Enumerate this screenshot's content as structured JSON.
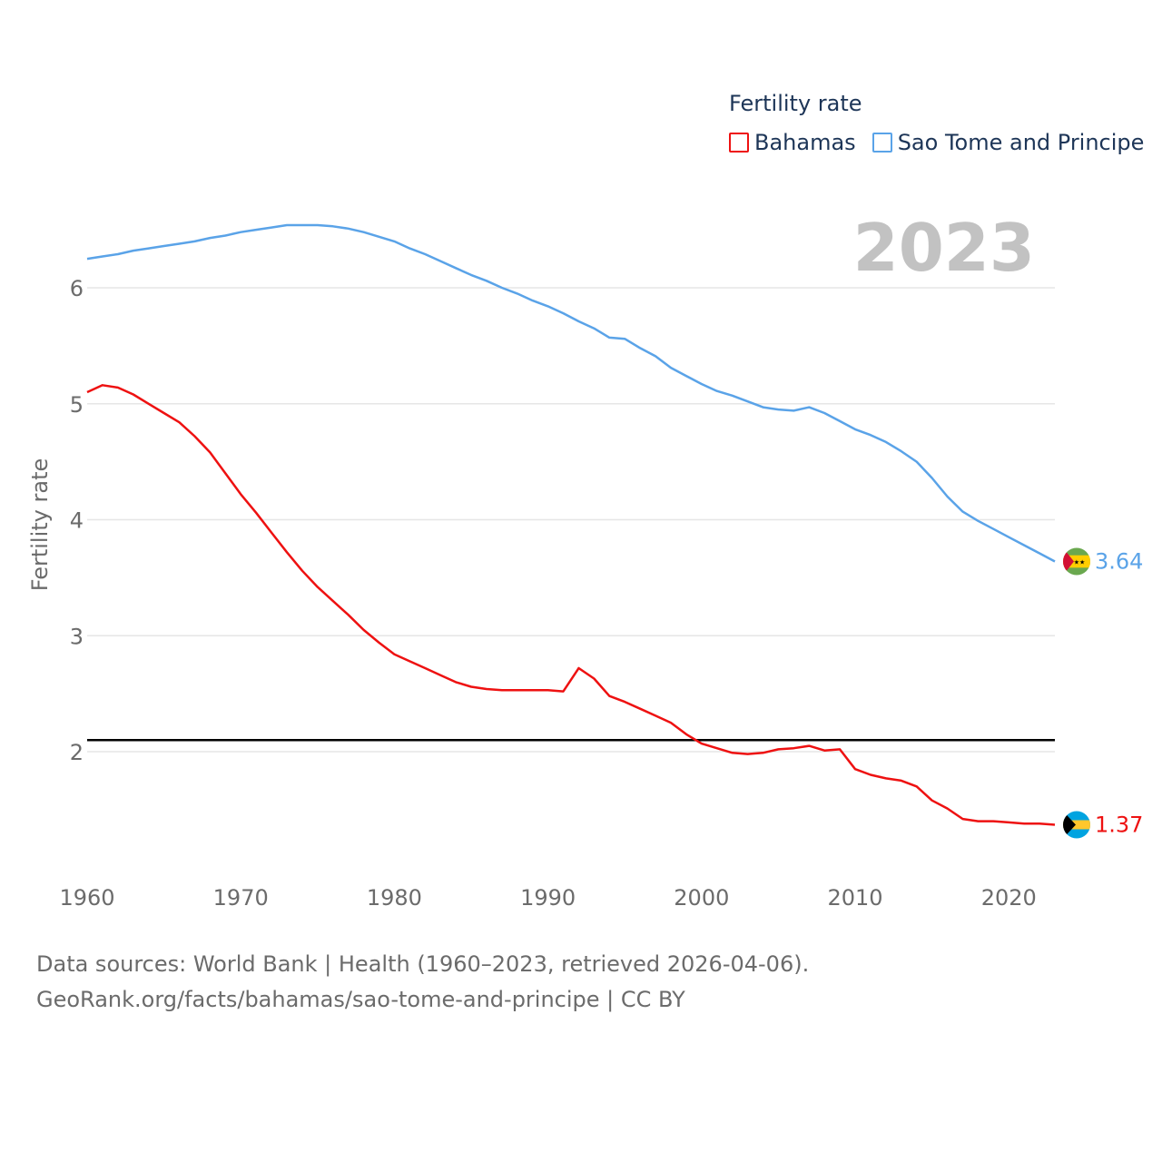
{
  "legend": {
    "title": "Fertility rate",
    "items": [
      {
        "label": "Bahamas",
        "color": "#ee1111"
      },
      {
        "label": "Sao Tome and Principe",
        "color": "#5aa3e8"
      }
    ]
  },
  "year_label": "2023",
  "footer": {
    "line1": "Data sources: World Bank | Health (1960–2023, retrieved 2026-04-06).",
    "line2": "GeoRank.org/facts/bahamas/sao-tome-and-principe | CC BY"
  },
  "chart_data": {
    "type": "line",
    "title": "",
    "xlabel": "",
    "ylabel": "Fertility rate",
    "xlim": [
      1960,
      2023
    ],
    "ylim": [
      1.0,
      6.8
    ],
    "xticks": [
      1960,
      1970,
      1980,
      1990,
      2000,
      2010,
      2020
    ],
    "yticks": [
      2,
      3,
      4,
      5,
      6
    ],
    "reference_line": {
      "value": 2.1,
      "color": "#000000"
    },
    "x": [
      1960,
      1961,
      1962,
      1963,
      1964,
      1965,
      1966,
      1967,
      1968,
      1969,
      1970,
      1971,
      1972,
      1973,
      1974,
      1975,
      1976,
      1977,
      1978,
      1979,
      1980,
      1981,
      1982,
      1983,
      1984,
      1985,
      1986,
      1987,
      1988,
      1989,
      1990,
      1991,
      1992,
      1993,
      1994,
      1995,
      1996,
      1997,
      1998,
      1999,
      2000,
      2001,
      2002,
      2003,
      2004,
      2005,
      2006,
      2007,
      2008,
      2009,
      2010,
      2011,
      2012,
      2013,
      2014,
      2015,
      2016,
      2017,
      2018,
      2019,
      2020,
      2021,
      2022,
      2023
    ],
    "series": [
      {
        "name": "Bahamas",
        "color": "#ee1111",
        "end_label": "1.37",
        "values": [
          5.1,
          5.16,
          5.14,
          5.08,
          5.0,
          4.92,
          4.84,
          4.72,
          4.58,
          4.4,
          4.22,
          4.06,
          3.89,
          3.72,
          3.56,
          3.42,
          3.3,
          3.18,
          3.05,
          2.94,
          2.84,
          2.78,
          2.72,
          2.66,
          2.6,
          2.56,
          2.54,
          2.53,
          2.53,
          2.53,
          2.53,
          2.52,
          2.72,
          2.63,
          2.48,
          2.43,
          2.37,
          2.31,
          2.25,
          2.15,
          2.07,
          2.03,
          1.99,
          1.98,
          1.99,
          2.02,
          2.03,
          2.05,
          2.01,
          2.02,
          1.85,
          1.8,
          1.77,
          1.75,
          1.7,
          1.58,
          1.51,
          1.42,
          1.4,
          1.4,
          1.39,
          1.38,
          1.38,
          1.37
        ]
      },
      {
        "name": "Sao Tome and Principe",
        "color": "#5aa3e8",
        "end_label": "3.64",
        "values": [
          6.25,
          6.27,
          6.29,
          6.32,
          6.34,
          6.36,
          6.38,
          6.4,
          6.43,
          6.45,
          6.48,
          6.5,
          6.52,
          6.54,
          6.54,
          6.54,
          6.53,
          6.51,
          6.48,
          6.44,
          6.4,
          6.34,
          6.29,
          6.23,
          6.17,
          6.11,
          6.06,
          6.0,
          5.95,
          5.89,
          5.84,
          5.78,
          5.71,
          5.65,
          5.57,
          5.56,
          5.48,
          5.41,
          5.31,
          5.24,
          5.17,
          5.11,
          5.07,
          5.02,
          4.97,
          4.95,
          4.94,
          4.97,
          4.92,
          4.85,
          4.78,
          4.73,
          4.67,
          4.59,
          4.5,
          4.36,
          4.2,
          4.07,
          3.99,
          3.92,
          3.85,
          3.78,
          3.71,
          3.64
        ]
      }
    ]
  }
}
